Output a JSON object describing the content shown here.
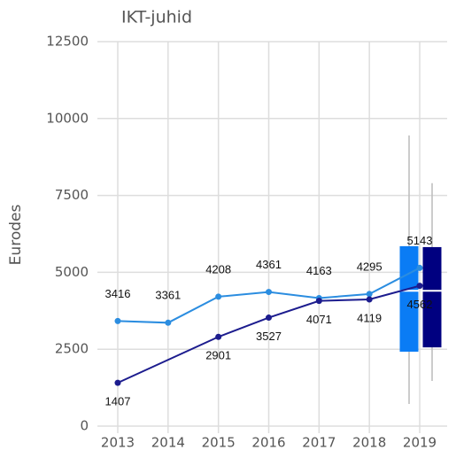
{
  "chart_data": {
    "type": "line",
    "title": "IKT-juhid",
    "ylabel": "Eurodes",
    "xlim": [
      2013,
      2019
    ],
    "xticks": [
      2013,
      2014,
      2015,
      2016,
      2017,
      2018,
      2019
    ],
    "ylim": [
      0,
      12500
    ],
    "yticks": [
      0,
      2500,
      5000,
      7500,
      10000,
      12500
    ],
    "grid": true,
    "series": [
      {
        "color": "#2b8de0",
        "x": [
          2013,
          2014,
          2015,
          2016,
          2017,
          2018,
          2019
        ],
        "values": [
          3416,
          3361,
          4208,
          4361,
          4163,
          4295,
          5143
        ]
      },
      {
        "color": "#1c1c8e",
        "x": [
          2013,
          2015,
          2016,
          2017,
          2018,
          2019
        ],
        "values": [
          1407,
          2901,
          3527,
          4071,
          4119,
          4562
        ]
      }
    ],
    "boxes": [
      {
        "x": 2019,
        "color": "#0a7cf5",
        "whislo": 720,
        "q1": 2420,
        "med": 4400,
        "q3": 5850,
        "whishi": 9450
      },
      {
        "x": 2019,
        "color": "#000080",
        "whislo": 1470,
        "q1": 2560,
        "med": 4400,
        "q3": 5820,
        "whishi": 7900
      }
    ]
  }
}
